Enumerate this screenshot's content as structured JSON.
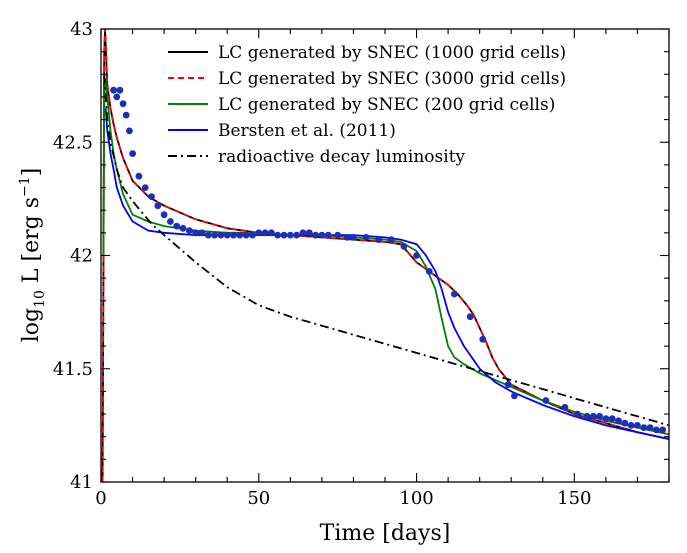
{
  "chart_data": {
    "type": "line",
    "xlabel": "Time [days]",
    "ylabel_main": "log",
    "ylabel_sub": "10",
    "ylabel_rest": " L [erg s",
    "ylabel_sup": "−1",
    "ylabel_end": "]",
    "xlim": [
      0,
      180
    ],
    "ylim": [
      41,
      43
    ],
    "xticks": [
      0,
      50,
      100,
      150
    ],
    "xtick_labels": [
      "0",
      "50",
      "100",
      "150"
    ],
    "yticks": [
      41,
      41.5,
      42,
      42.5,
      43
    ],
    "ytick_labels": [
      "41",
      "41.5",
      "42",
      "42.5",
      "43"
    ],
    "legend_position": "top-right",
    "series": [
      {
        "name": "LC generated by SNEC (1000 grid cells)",
        "color": "#000000",
        "dash": "solid",
        "x": [
          0.5,
          0.8,
          1.0,
          1.3,
          1.7,
          2.0,
          3,
          4,
          5,
          7,
          10,
          15,
          20,
          30,
          40,
          50,
          60,
          70,
          80,
          90,
          95,
          100,
          105,
          110,
          113,
          116,
          118,
          120,
          122,
          124,
          126,
          130,
          140,
          150,
          160,
          170,
          180
        ],
        "y": [
          41.0,
          42.0,
          42.9,
          43.0,
          42.85,
          42.75,
          42.65,
          42.58,
          42.52,
          42.43,
          42.33,
          42.26,
          42.22,
          42.16,
          42.12,
          42.1,
          42.09,
          42.08,
          42.07,
          42.06,
          42.05,
          41.97,
          41.92,
          41.87,
          41.83,
          41.78,
          41.74,
          41.68,
          41.62,
          41.55,
          41.5,
          41.43,
          41.36,
          41.3,
          41.26,
          41.22,
          41.19
        ]
      },
      {
        "name": "LC generated by SNEC (3000 grid cells)",
        "color": "#ff0000",
        "dash": "dashed",
        "x": [
          0.5,
          0.8,
          1.0,
          1.3,
          1.7,
          2.0,
          3,
          4,
          5,
          7,
          10,
          15,
          20,
          30,
          40,
          50,
          60,
          70,
          80,
          90,
          95,
          100,
          105,
          110,
          113,
          116,
          118,
          120,
          122,
          124,
          126,
          130,
          140,
          150,
          160,
          170,
          180
        ],
        "y": [
          41.0,
          42.0,
          42.9,
          43.0,
          42.86,
          42.76,
          42.65,
          42.58,
          42.52,
          42.43,
          42.33,
          42.26,
          42.22,
          42.16,
          42.12,
          42.1,
          42.09,
          42.08,
          42.07,
          42.06,
          42.05,
          41.97,
          41.92,
          41.87,
          41.83,
          41.78,
          41.74,
          41.68,
          41.62,
          41.55,
          41.5,
          41.43,
          41.36,
          41.3,
          41.26,
          41.22,
          41.19
        ]
      },
      {
        "name": "LC generated by SNEC (200 grid cells)",
        "color": "#008000",
        "dash": "solid",
        "x": [
          0.8,
          1.0,
          1.5,
          2,
          3,
          4,
          5,
          7,
          10,
          15,
          20,
          30,
          40,
          50,
          60,
          70,
          80,
          90,
          95,
          100,
          103,
          106,
          108,
          110,
          112,
          115,
          120,
          130,
          140,
          150,
          160,
          170,
          180
        ],
        "y": [
          42.0,
          42.7,
          42.78,
          42.7,
          42.55,
          42.45,
          42.38,
          42.27,
          42.18,
          42.15,
          42.13,
          42.11,
          42.1,
          42.1,
          42.09,
          42.09,
          42.08,
          42.07,
          42.06,
          42.02,
          41.95,
          41.85,
          41.72,
          41.6,
          41.55,
          41.52,
          41.48,
          41.42,
          41.36,
          41.31,
          41.27,
          41.24,
          41.21
        ]
      },
      {
        "name": "Bersten et al. (2011)",
        "color": "#0000ff",
        "dash": "solid",
        "x": [
          1.5,
          2,
          3,
          4,
          5,
          7,
          10,
          15,
          20,
          30,
          40,
          50,
          60,
          70,
          80,
          90,
          95,
          100,
          103,
          106,
          108,
          110,
          112,
          115,
          118,
          120,
          125,
          130,
          140,
          150,
          160,
          170,
          180
        ],
        "y": [
          42.65,
          42.55,
          42.45,
          42.38,
          42.3,
          42.22,
          42.15,
          42.11,
          42.1,
          42.09,
          42.09,
          42.09,
          42.09,
          42.09,
          42.09,
          42.08,
          42.07,
          42.05,
          42.0,
          41.93,
          41.85,
          41.75,
          41.68,
          41.6,
          41.54,
          41.5,
          41.44,
          41.4,
          41.34,
          41.29,
          41.25,
          41.22,
          41.19
        ]
      },
      {
        "name": "radioactive decay luminosity",
        "color": "#000000",
        "dash": "dashdot",
        "x": [
          1,
          2,
          3,
          5,
          7,
          10,
          13,
          16,
          20,
          25,
          30,
          40,
          50,
          60,
          70,
          80,
          90,
          100,
          110,
          120,
          130,
          140,
          150,
          160,
          170,
          180
        ],
        "y": [
          42.8,
          42.6,
          42.5,
          42.38,
          42.3,
          42.24,
          42.19,
          42.14,
          42.09,
          42.03,
          41.97,
          41.86,
          41.78,
          41.73,
          41.69,
          41.65,
          41.61,
          41.57,
          41.53,
          41.49,
          41.45,
          41.41,
          41.37,
          41.33,
          41.29,
          41.25
        ]
      }
    ],
    "observations": {
      "name": "observed",
      "color": "#1c2fb8",
      "x": [
        4,
        5,
        6,
        7,
        8,
        9,
        10,
        12,
        14,
        16,
        18,
        20,
        22,
        24,
        26,
        28,
        30,
        32,
        34,
        36,
        38,
        40,
        42,
        44,
        46,
        48,
        50,
        52,
        54,
        56,
        58,
        60,
        62,
        64,
        66,
        68,
        70,
        72,
        75,
        78,
        80,
        84,
        88,
        92,
        96,
        100,
        104,
        112,
        117,
        121,
        129,
        131,
        141,
        147,
        151,
        154,
        156,
        158,
        160,
        162,
        164,
        166,
        168,
        170,
        172,
        174,
        176,
        178
      ],
      "y": [
        42.73,
        42.7,
        42.73,
        42.67,
        42.62,
        42.55,
        42.45,
        42.35,
        42.3,
        42.26,
        42.22,
        42.18,
        42.15,
        42.13,
        42.12,
        42.11,
        42.1,
        42.1,
        42.09,
        42.09,
        42.09,
        42.09,
        42.09,
        42.09,
        42.09,
        42.09,
        42.1,
        42.1,
        42.1,
        42.09,
        42.09,
        42.09,
        42.09,
        42.1,
        42.1,
        42.09,
        42.09,
        42.09,
        42.09,
        42.08,
        42.08,
        42.08,
        42.07,
        42.07,
        42.04,
        42.0,
        41.93,
        41.83,
        41.73,
        41.63,
        41.43,
        41.38,
        41.36,
        41.33,
        41.3,
        41.29,
        41.29,
        41.29,
        41.28,
        41.28,
        41.27,
        41.26,
        41.25,
        41.25,
        41.24,
        41.24,
        41.23,
        41.23
      ]
    }
  }
}
